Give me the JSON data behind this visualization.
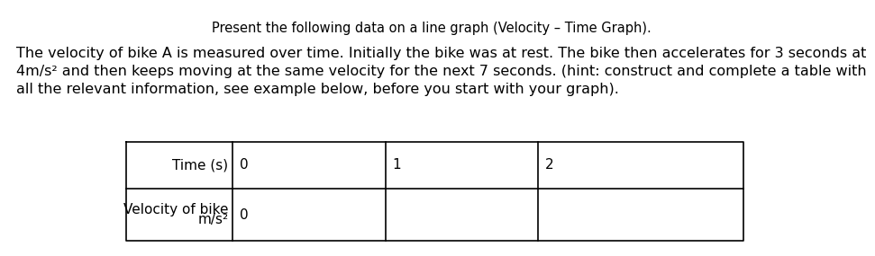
{
  "title": "Present the following data on a line graph (Velocity – Time Graph).",
  "para_line1": "The velocity of bike A is measured over time. Initially the bike was at rest. The bike then accelerates for 3 seconds at",
  "para_line2": "4m/s² and then keeps moving at the same velocity for the next 7 seconds. (hint: construct and complete a table with",
  "para_line3": "all the relevant information, see example below, before you start with your graph).",
  "table_col1_row1": "Time (s)",
  "table_col1_row2_line1": "Velocity of bike",
  "table_col1_row2_line2": "m/s²",
  "table_row1_vals": [
    "0",
    "1",
    "2"
  ],
  "table_row2_val0": "0",
  "background_color": "#ffffff",
  "text_color": "#000000",
  "title_fontsize": 10.5,
  "body_fontsize": 11.5,
  "table_fontsize": 11
}
